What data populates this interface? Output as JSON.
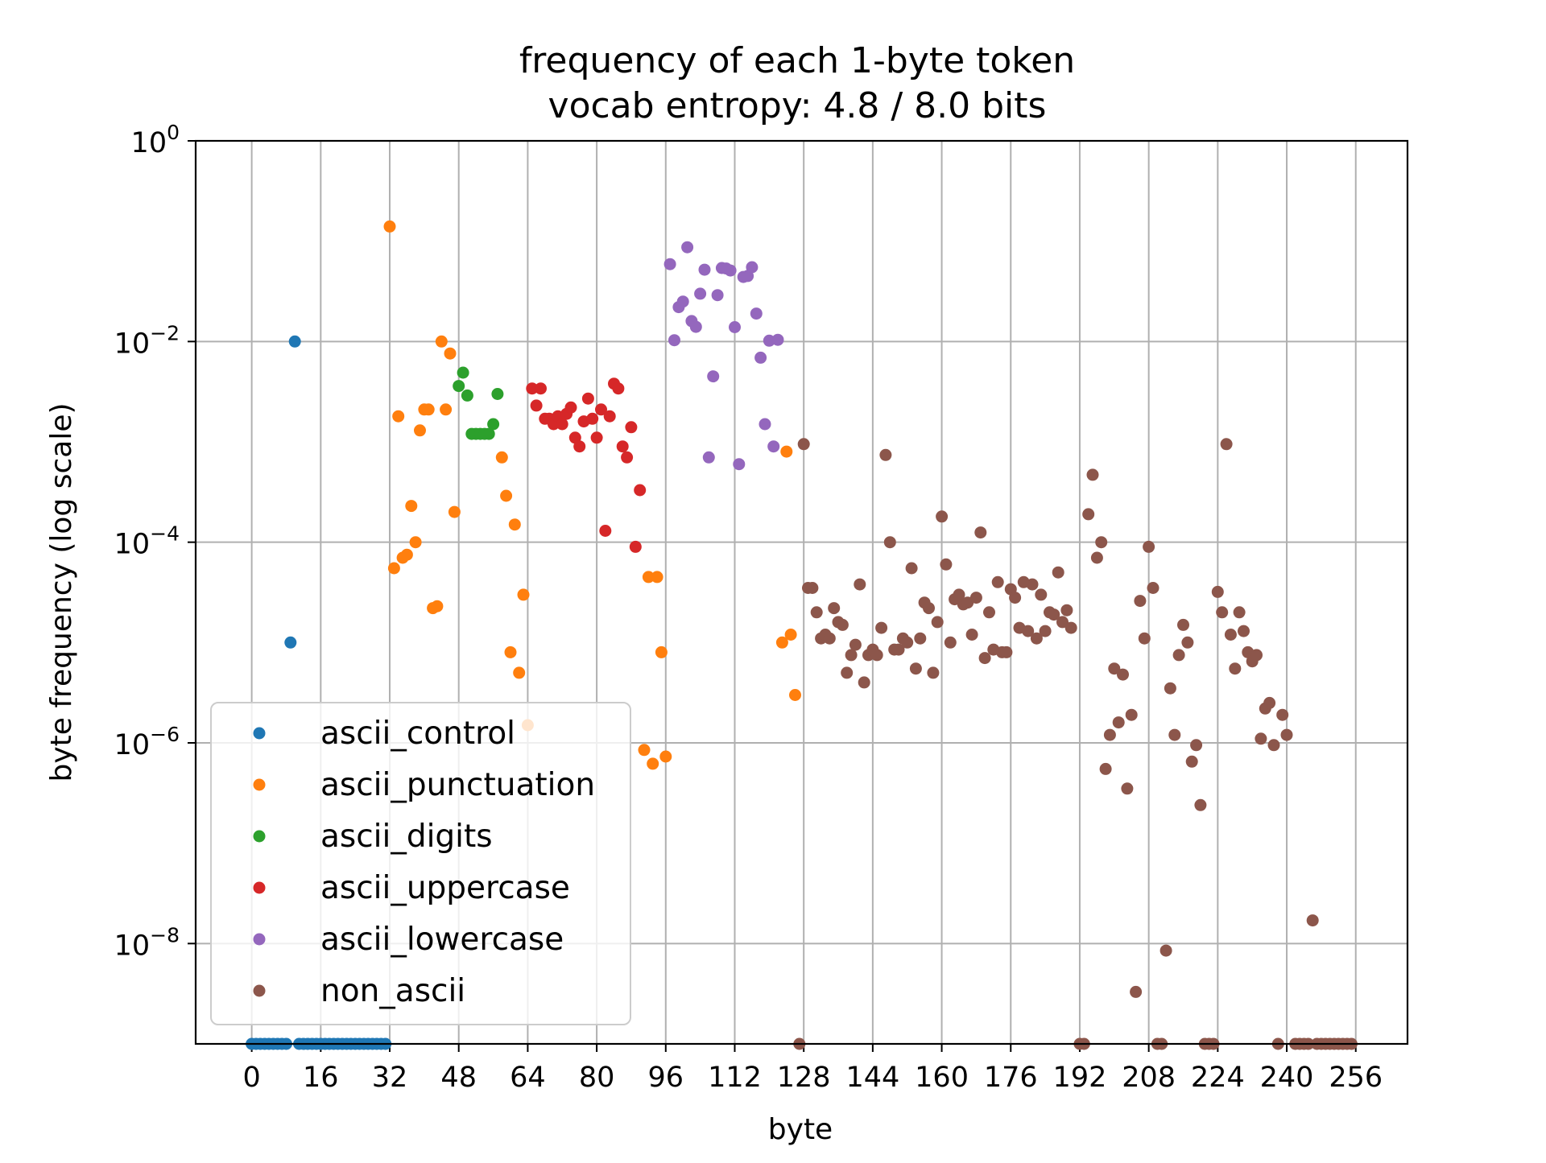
{
  "chart_data": {
    "type": "scatter",
    "title": "frequency of each 1-byte token",
    "subtitle": "vocab entropy: 4.8 / 8.0 bits",
    "xlabel": "byte",
    "ylabel": "byte frequency (log scale)",
    "xlim": [
      -13,
      268
    ],
    "ylim": [
      1e-09,
      1
    ],
    "yscale": "log",
    "xticks": [
      {
        "value": 0,
        "label": "0"
      },
      {
        "value": 16,
        "label": "16"
      },
      {
        "value": 32,
        "label": "32"
      },
      {
        "value": 48,
        "label": "48"
      },
      {
        "value": 64,
        "label": "64"
      },
      {
        "value": 80,
        "label": "80"
      },
      {
        "value": 96,
        "label": "96"
      },
      {
        "value": 112,
        "label": "112"
      },
      {
        "value": 128,
        "label": "128"
      },
      {
        "value": 144,
        "label": "144"
      },
      {
        "value": 160,
        "label": "160"
      },
      {
        "value": 176,
        "label": "176"
      },
      {
        "value": 192,
        "label": "192"
      },
      {
        "value": 208,
        "label": "208"
      },
      {
        "value": 224,
        "label": "224"
      },
      {
        "value": 240,
        "label": "240"
      },
      {
        "value": 256,
        "label": "256"
      }
    ],
    "yticks": [
      {
        "value": 1,
        "base": "10",
        "exp": "0"
      },
      {
        "value": 0.01,
        "base": "10",
        "exp": "−2"
      },
      {
        "value": 0.0001,
        "base": "10",
        "exp": "−4"
      },
      {
        "value": 1e-06,
        "base": "10",
        "exp": "−6"
      },
      {
        "value": 1e-08,
        "base": "10",
        "exp": "−8"
      }
    ],
    "grid": true,
    "legend_position": "lower-left",
    "series": [
      {
        "name": "ascii_control",
        "color": "#1f77b4",
        "points": [
          [
            0,
            1e-09
          ],
          [
            1,
            1e-09
          ],
          [
            2,
            1e-09
          ],
          [
            3,
            1e-09
          ],
          [
            4,
            1e-09
          ],
          [
            5,
            1e-09
          ],
          [
            6,
            1e-09
          ],
          [
            7,
            1e-09
          ],
          [
            8,
            1e-09
          ],
          [
            9,
            1e-05
          ],
          [
            10,
            0.01
          ],
          [
            11,
            1e-09
          ],
          [
            12,
            1e-09
          ],
          [
            13,
            1e-09
          ],
          [
            14,
            1e-09
          ],
          [
            15,
            1e-09
          ],
          [
            16,
            1e-09
          ],
          [
            17,
            1e-09
          ],
          [
            18,
            1e-09
          ],
          [
            19,
            1e-09
          ],
          [
            20,
            1e-09
          ],
          [
            21,
            1e-09
          ],
          [
            22,
            1e-09
          ],
          [
            23,
            1e-09
          ],
          [
            24,
            1e-09
          ],
          [
            25,
            1e-09
          ],
          [
            26,
            1e-09
          ],
          [
            27,
            1e-09
          ],
          [
            28,
            1e-09
          ],
          [
            29,
            1e-09
          ],
          [
            30,
            1e-09
          ],
          [
            31,
            1e-09
          ]
        ]
      },
      {
        "name": "ascii_punctuation",
        "color": "#ff7f0e",
        "points": [
          [
            32,
            0.14
          ],
          [
            33,
            5.5e-05
          ],
          [
            34,
            0.0018
          ],
          [
            35,
            7e-05
          ],
          [
            36,
            7.5e-05
          ],
          [
            37,
            0.00023
          ],
          [
            38,
            0.0001
          ],
          [
            39,
            0.0013
          ],
          [
            40,
            0.0021
          ],
          [
            41,
            0.0021
          ],
          [
            42,
            2.2e-05
          ],
          [
            43,
            2.3e-05
          ],
          [
            44,
            0.01
          ],
          [
            45,
            0.0021
          ],
          [
            46,
            0.0076
          ],
          [
            47,
            0.0002
          ],
          [
            58,
            0.0007
          ],
          [
            59,
            0.00029
          ],
          [
            60,
            8e-06
          ],
          [
            61,
            0.00015
          ],
          [
            62,
            5e-06
          ],
          [
            63,
            3e-05
          ],
          [
            64,
            1.5e-06
          ],
          [
            91,
            8.5e-07
          ],
          [
            92,
            4.5e-05
          ],
          [
            93,
            6.2e-07
          ],
          [
            94,
            4.5e-05
          ],
          [
            95,
            8e-06
          ],
          [
            96,
            7.3e-07
          ],
          [
            123,
            1e-05
          ],
          [
            124,
            0.0008
          ],
          [
            125,
            1.2e-05
          ],
          [
            126,
            3e-06
          ]
        ]
      },
      {
        "name": "ascii_digits",
        "color": "#2ca02c",
        "points": [
          [
            48,
            0.0036
          ],
          [
            49,
            0.0049
          ],
          [
            50,
            0.0029
          ],
          [
            51,
            0.0012
          ],
          [
            52,
            0.0012
          ],
          [
            53,
            0.0012
          ],
          [
            54,
            0.0012
          ],
          [
            55,
            0.0012
          ],
          [
            56,
            0.0015
          ],
          [
            57,
            0.003
          ]
        ]
      },
      {
        "name": "ascii_uppercase",
        "color": "#d62728",
        "points": [
          [
            65,
            0.0034
          ],
          [
            66,
            0.0023
          ],
          [
            67,
            0.0034
          ],
          [
            68,
            0.0017
          ],
          [
            69,
            0.0017
          ],
          [
            70,
            0.0015
          ],
          [
            71,
            0.0018
          ],
          [
            72,
            0.0015
          ],
          [
            73,
            0.0019
          ],
          [
            74,
            0.0022
          ],
          [
            75,
            0.0011
          ],
          [
            76,
            0.0009
          ],
          [
            77,
            0.0016
          ],
          [
            78,
            0.0027
          ],
          [
            79,
            0.0017
          ],
          [
            80,
            0.0011
          ],
          [
            81,
            0.0021
          ],
          [
            82,
            0.00013
          ],
          [
            83,
            0.0018
          ],
          [
            84,
            0.0038
          ],
          [
            85,
            0.0034
          ],
          [
            86,
            0.0009
          ],
          [
            87,
            0.0007
          ],
          [
            88,
            0.0014
          ],
          [
            89,
            9e-05
          ],
          [
            90,
            0.00033
          ]
        ]
      },
      {
        "name": "ascii_lowercase",
        "color": "#9467bd",
        "points": [
          [
            97,
            0.059
          ],
          [
            98,
            0.0103
          ],
          [
            99,
            0.022
          ],
          [
            100,
            0.025
          ],
          [
            101,
            0.087
          ],
          [
            102,
            0.016
          ],
          [
            103,
            0.014
          ],
          [
            104,
            0.03
          ],
          [
            105,
            0.052
          ],
          [
            106,
            0.0007
          ],
          [
            107,
            0.0045
          ],
          [
            108,
            0.029
          ],
          [
            109,
            0.054
          ],
          [
            110,
            0.0534
          ],
          [
            111,
            0.051
          ],
          [
            112,
            0.0139
          ],
          [
            113,
            0.0006
          ],
          [
            114,
            0.044
          ],
          [
            115,
            0.045
          ],
          [
            116,
            0.055
          ],
          [
            117,
            0.019
          ],
          [
            118,
            0.0069
          ],
          [
            119,
            0.0015
          ],
          [
            120,
            0.0102
          ],
          [
            121,
            0.0009
          ],
          [
            122,
            0.0104
          ]
        ]
      },
      {
        "name": "non_ascii",
        "color": "#8c564b",
        "points": [
          [
            127,
            1e-09
          ],
          [
            128,
            0.00095
          ],
          [
            129,
            3.5e-05
          ],
          [
            130,
            3.5e-05
          ],
          [
            131,
            2e-05
          ],
          [
            132,
            1.1e-05
          ],
          [
            133,
            1.2e-05
          ],
          [
            134,
            1.1e-05
          ],
          [
            135,
            2.2e-05
          ],
          [
            136,
            1.6e-05
          ],
          [
            137,
            1.5e-05
          ],
          [
            138,
            5e-06
          ],
          [
            139,
            7.5e-06
          ],
          [
            140,
            9.5e-06
          ],
          [
            141,
            3.8e-05
          ],
          [
            142,
            4e-06
          ],
          [
            143,
            7.5e-06
          ],
          [
            144,
            8.5e-06
          ],
          [
            145,
            7.5e-06
          ],
          [
            146,
            1.4e-05
          ],
          [
            147,
            0.00074
          ],
          [
            148,
            0.0001
          ],
          [
            149,
            8.5e-06
          ],
          [
            150,
            8.5e-06
          ],
          [
            151,
            1.1e-05
          ],
          [
            152,
            1e-05
          ],
          [
            153,
            5.5e-05
          ],
          [
            154,
            5.5e-06
          ],
          [
            155,
            1.1e-05
          ],
          [
            156,
            2.5e-05
          ],
          [
            157,
            2.2e-05
          ],
          [
            158,
            5e-06
          ],
          [
            159,
            1.6e-05
          ],
          [
            160,
            0.00018
          ],
          [
            161,
            6e-05
          ],
          [
            162,
            1e-05
          ],
          [
            163,
            2.7e-05
          ],
          [
            164,
            3e-05
          ],
          [
            165,
            2.4e-05
          ],
          [
            166,
            2.5e-05
          ],
          [
            167,
            1.2e-05
          ],
          [
            168,
            2.8e-05
          ],
          [
            169,
            0.000125
          ],
          [
            170,
            7e-06
          ],
          [
            171,
            2e-05
          ],
          [
            172,
            8.5e-06
          ],
          [
            173,
            4e-05
          ],
          [
            174,
            8e-06
          ],
          [
            175,
            8e-06
          ],
          [
            176,
            3.4e-05
          ],
          [
            177,
            2.8e-05
          ],
          [
            178,
            1.4e-05
          ],
          [
            179,
            4e-05
          ],
          [
            180,
            1.3e-05
          ],
          [
            181,
            3.8e-05
          ],
          [
            182,
            1.1e-05
          ],
          [
            183,
            3e-05
          ],
          [
            184,
            1.3e-05
          ],
          [
            185,
            2e-05
          ],
          [
            186,
            1.9e-05
          ],
          [
            187,
            5e-05
          ],
          [
            188,
            1.6e-05
          ],
          [
            189,
            2.1e-05
          ],
          [
            190,
            1.4e-05
          ],
          [
            192,
            1e-09
          ],
          [
            193,
            1e-09
          ],
          [
            194,
            0.00019
          ],
          [
            195,
            0.00047
          ],
          [
            196,
            7e-05
          ],
          [
            197,
            0.0001
          ],
          [
            198,
            5.5e-07
          ],
          [
            199,
            1.2e-06
          ],
          [
            200,
            5.5e-06
          ],
          [
            201,
            1.6e-06
          ],
          [
            202,
            4.8e-06
          ],
          [
            203,
            3.5e-07
          ],
          [
            204,
            1.9e-06
          ],
          [
            205,
            3.3e-09
          ],
          [
            206,
            2.6e-05
          ],
          [
            207,
            1.1e-05
          ],
          [
            208,
            9e-05
          ],
          [
            209,
            3.5e-05
          ],
          [
            210,
            1e-09
          ],
          [
            211,
            1e-09
          ],
          [
            212,
            8.5e-09
          ],
          [
            213,
            3.5e-06
          ],
          [
            214,
            1.2e-06
          ],
          [
            215,
            7.5e-06
          ],
          [
            216,
            1.5e-05
          ],
          [
            217,
            1e-05
          ],
          [
            218,
            6.5e-07
          ],
          [
            219,
            9.5e-07
          ],
          [
            220,
            2.4e-07
          ],
          [
            221,
            1e-09
          ],
          [
            222,
            1e-09
          ],
          [
            223,
            1e-09
          ],
          [
            224,
            3.2e-05
          ],
          [
            225,
            2e-05
          ],
          [
            226,
            0.00095
          ],
          [
            227,
            1.2e-05
          ],
          [
            228,
            5.5e-06
          ],
          [
            229,
            2e-05
          ],
          [
            230,
            1.3e-05
          ],
          [
            231,
            8e-06
          ],
          [
            232,
            6.5e-06
          ],
          [
            233,
            7.5e-06
          ],
          [
            234,
            1.1e-06
          ],
          [
            235,
            2.2e-06
          ],
          [
            236,
            2.5e-06
          ],
          [
            237,
            9.5e-07
          ],
          [
            238,
            1e-09
          ],
          [
            239,
            1.9e-06
          ],
          [
            240,
            1.2e-06
          ],
          [
            242,
            1e-09
          ],
          [
            243,
            1e-09
          ],
          [
            244,
            1e-09
          ],
          [
            245,
            1e-09
          ],
          [
            246,
            1.7e-08
          ],
          [
            247,
            1e-09
          ],
          [
            248,
            1e-09
          ],
          [
            249,
            1e-09
          ],
          [
            250,
            1e-09
          ],
          [
            251,
            1e-09
          ],
          [
            252,
            1e-09
          ],
          [
            253,
            1e-09
          ],
          [
            254,
            1e-09
          ],
          [
            255,
            1e-09
          ]
        ]
      }
    ]
  }
}
